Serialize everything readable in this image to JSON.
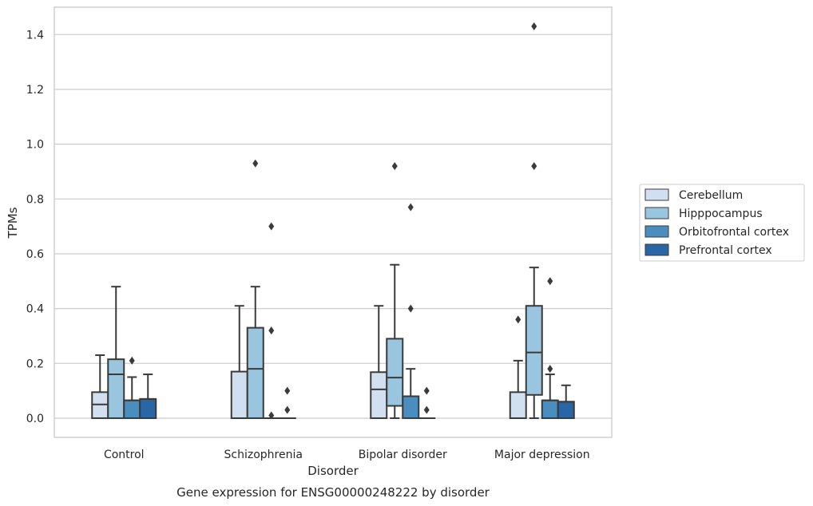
{
  "chart_data": {
    "type": "box",
    "caption": "Gene expression for ENSG00000248222 by disorder",
    "xlabel": "Disorder",
    "ylabel": "TPMs",
    "ylim": [
      -0.07,
      1.5
    ],
    "yticks": [
      0.0,
      0.2,
      0.4,
      0.6,
      0.8,
      1.0,
      1.2,
      1.4
    ],
    "ytick_labels": [
      "0.0",
      "0.2",
      "0.4",
      "0.6",
      "0.8",
      "1.0",
      "1.2",
      "1.4"
    ],
    "grid": "horizontal",
    "legend_position": "right-center",
    "categories": [
      "Control",
      "Schizophrenia",
      "Bipolar disorder",
      "Major depression"
    ],
    "series": [
      {
        "name": "Cerebellum",
        "color": "#d0e0f0",
        "boxes": [
          {
            "q1": 0.0,
            "median": 0.05,
            "q3": 0.095,
            "whisker_low": 0.0,
            "whisker_high": 0.23,
            "outliers": []
          },
          {
            "q1": 0.0,
            "median": 0.0,
            "q3": 0.17,
            "whisker_low": 0.0,
            "whisker_high": 0.41,
            "outliers": []
          },
          {
            "q1": 0.0,
            "median": 0.105,
            "q3": 0.168,
            "whisker_low": 0.0,
            "whisker_high": 0.41,
            "outliers": []
          },
          {
            "q1": 0.0,
            "median": 0.0,
            "q3": 0.095,
            "whisker_low": 0.0,
            "whisker_high": 0.21,
            "outliers": [
              0.36
            ]
          }
        ]
      },
      {
        "name": "Hipppocampus",
        "color": "#9ac5de",
        "boxes": [
          {
            "q1": 0.0,
            "median": 0.16,
            "q3": 0.215,
            "whisker_low": 0.0,
            "whisker_high": 0.48,
            "outliers": []
          },
          {
            "q1": 0.0,
            "median": 0.18,
            "q3": 0.33,
            "whisker_low": 0.0,
            "whisker_high": 0.48,
            "outliers": [
              0.93
            ]
          },
          {
            "q1": 0.045,
            "median": 0.148,
            "q3": 0.29,
            "whisker_low": 0.0,
            "whisker_high": 0.56,
            "outliers": [
              0.92
            ]
          },
          {
            "q1": 0.085,
            "median": 0.24,
            "q3": 0.41,
            "whisker_low": 0.0,
            "whisker_high": 0.55,
            "outliers": [
              0.92,
              1.43
            ]
          }
        ]
      },
      {
        "name": "Orbitofrontal cortex",
        "color": "#4a8dbf",
        "boxes": [
          {
            "q1": 0.0,
            "median": 0.065,
            "q3": 0.065,
            "whisker_low": 0.0,
            "whisker_high": 0.15,
            "outliers": [
              0.21
            ]
          },
          {
            "q1": 0.0,
            "median": 0.0,
            "q3": 0.0,
            "whisker_low": 0.0,
            "whisker_high": 0.0,
            "outliers": [
              0.01,
              0.32,
              0.7
            ]
          },
          {
            "q1": 0.0,
            "median": 0.08,
            "q3": 0.08,
            "whisker_low": 0.0,
            "whisker_high": 0.18,
            "outliers": [
              0.4,
              0.77
            ]
          },
          {
            "q1": 0.0,
            "median": 0.065,
            "q3": 0.065,
            "whisker_low": 0.0,
            "whisker_high": 0.16,
            "outliers": [
              0.18,
              0.5
            ]
          }
        ]
      },
      {
        "name": "Prefrontal cortex",
        "color": "#2866a6",
        "boxes": [
          {
            "q1": 0.0,
            "median": 0.07,
            "q3": 0.07,
            "whisker_low": 0.0,
            "whisker_high": 0.16,
            "outliers": []
          },
          {
            "q1": 0.0,
            "median": 0.0,
            "q3": 0.0,
            "whisker_low": 0.0,
            "whisker_high": 0.0,
            "outliers": [
              0.03,
              0.1
            ]
          },
          {
            "q1": 0.0,
            "median": 0.0,
            "q3": 0.0,
            "whisker_low": 0.0,
            "whisker_high": 0.0,
            "outliers": [
              0.03,
              0.1
            ]
          },
          {
            "q1": 0.0,
            "median": 0.06,
            "q3": 0.06,
            "whisker_low": 0.0,
            "whisker_high": 0.12,
            "outliers": []
          }
        ]
      }
    ]
  }
}
